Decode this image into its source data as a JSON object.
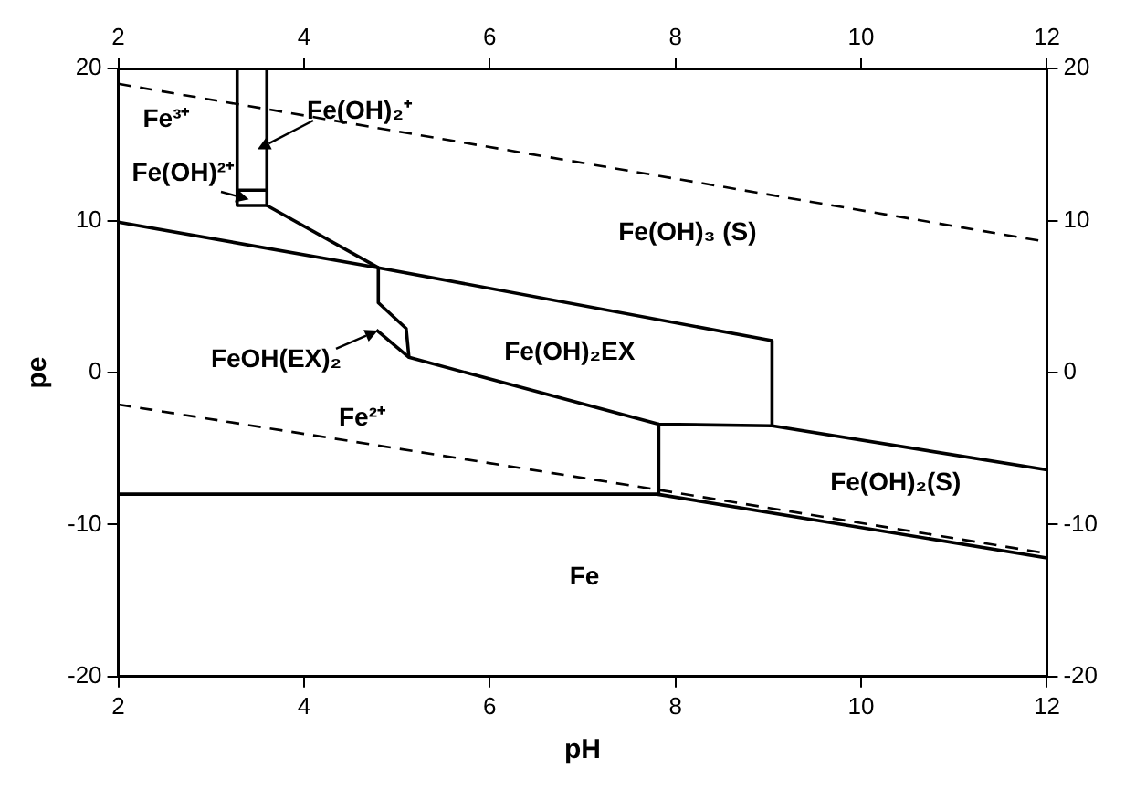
{
  "chart_data": {
    "type": "line",
    "xlabel": "pH",
    "ylabel": "pe",
    "xlim": [
      2,
      12
    ],
    "xticks": [
      2,
      4,
      6,
      8,
      10,
      12
    ],
    "x2lim": [
      2,
      12
    ],
    "x2ticks": [
      2,
      4,
      6,
      8,
      10,
      12
    ],
    "ylim": [
      -20,
      20
    ],
    "yticks": [
      -20,
      -10,
      0,
      10,
      20
    ],
    "y2lim": [
      -20,
      20
    ],
    "y2ticks": [
      -20,
      -10,
      0,
      10,
      20
    ],
    "grid": false,
    "legend": false,
    "marker": "none",
    "series": [
      {
        "color": "#000000",
        "line_style": "dashed",
        "x": [
          2,
          12
        ],
        "values": [
          19,
          8.6
        ]
      },
      {
        "color": "#000000",
        "line_style": "dashed",
        "x": [
          2,
          7.8,
          12
        ],
        "values": [
          -2.1,
          -7.7,
          -11.9
        ]
      },
      {
        "color": "#000000",
        "line_style": "solid",
        "x": [
          2,
          7.8,
          12
        ],
        "values": [
          -8,
          -8,
          -12.2
        ]
      },
      {
        "color": "#000000",
        "line_style": "solid",
        "x": [
          2,
          4.8,
          9.04
        ],
        "values": [
          9.9,
          6.9,
          2.1
        ]
      },
      {
        "color": "#000000",
        "line_style": "solid",
        "x": [
          3.6,
          4.8
        ],
        "values": [
          11,
          6.9
        ]
      },
      {
        "color": "#000000",
        "line_style": "solid",
        "x": [
          3.28,
          3.28,
          3.6,
          3.6
        ],
        "values": [
          20,
          11,
          11,
          20
        ]
      },
      {
        "color": "#000000",
        "line_style": "solid",
        "x": [
          3.28,
          3.6
        ],
        "values": [
          12,
          12
        ]
      },
      {
        "color": "#000000",
        "line_style": "solid",
        "x": [
          4.8,
          4.8,
          5.1,
          5.13
        ],
        "values": [
          6.9,
          4.6,
          2.9,
          1.0
        ]
      },
      {
        "color": "#000000",
        "line_style": "solid",
        "x": [
          4.78,
          5.13,
          7.82,
          9.04,
          12
        ],
        "values": [
          2.8,
          1.0,
          -3.4,
          -3.5,
          -6.4
        ]
      },
      {
        "color": "#000000",
        "line_style": "solid",
        "x": [
          9.04,
          9.04
        ],
        "values": [
          2.1,
          -3.5
        ]
      },
      {
        "color": "#000000",
        "line_style": "solid",
        "x": [
          7.82,
          7.82
        ],
        "values": [
          -3.4,
          -8
        ]
      }
    ],
    "annotations": [
      "Fe³⁺",
      {
        "text": "Fe(OH)₂⁺",
        "x": 3.5,
        "y": 14.7
      },
      {
        "text": "Fe(OH)²⁺",
        "x": 3.4,
        "y": 11.4
      },
      "Fe(OH)₃ (S)",
      {
        "text": "FeOH(EX)₂",
        "x": 4.8,
        "y": 2.8
      },
      "Fe(OH)₂EX",
      "Fe²⁺",
      "Fe(OH)₂(S)",
      "Fe"
    ]
  }
}
